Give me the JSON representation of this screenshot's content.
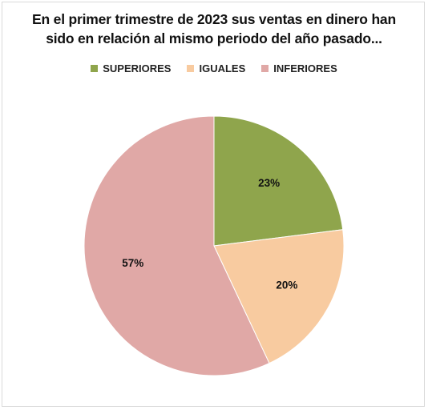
{
  "chart_data": {
    "type": "pie",
    "title_lines": [
      "En el primer trimestre de 2023 sus ventas en dinero han",
      "sido en relación al mismo periodo del año pasado..."
    ],
    "categories": [
      "SUPERIORES",
      "IGUALES",
      "INFERIORES"
    ],
    "values": [
      23,
      20,
      57
    ],
    "value_labels": [
      "23%",
      "20%",
      "57%"
    ],
    "colors": [
      "#8fa54c",
      "#f8cba0",
      "#e0a8a6"
    ],
    "legend_position": "top",
    "start_angle": "12 o'clock",
    "direction": "clockwise"
  }
}
